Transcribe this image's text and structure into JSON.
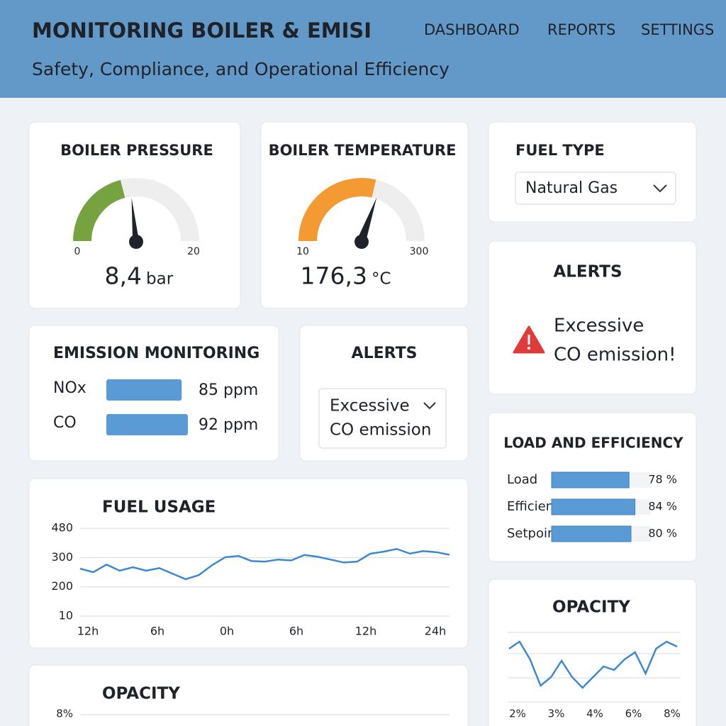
{
  "header": {
    "title": "MONITORING BOILER & EMISI",
    "subtitle": "Safety, Compliance, and Operational Efficiency",
    "nav": [
      "DASHBOARD",
      "REPORTS",
      "SETTINGS"
    ]
  },
  "pressure": {
    "title": "BOILER PRESSURE",
    "min": 0,
    "max": 20,
    "value": 8.4,
    "value_label": "8,4",
    "unit": "bar",
    "color": "#76a240"
  },
  "temperature": {
    "title": "BOILER TEMPERATURE",
    "min": 10,
    "max": 300,
    "value": 176.3,
    "value_label": "176,3",
    "unit": "°C",
    "color": "#f39a33"
  },
  "fuel_type": {
    "title": "FUEL TYPE",
    "selected": "Natural Gas"
  },
  "alert_panel": {
    "title": "ALERTS",
    "lines": [
      "Excessive",
      "CO emission!"
    ]
  },
  "emission": {
    "title": "EMISSION MONITORING",
    "rows": [
      {
        "name": "NOx",
        "value": 85,
        "value_label": "85 ppm"
      },
      {
        "name": "CO",
        "value": 92,
        "value_label": "92 ppm"
      }
    ]
  },
  "alert_select": {
    "title": "ALERTS",
    "lines": [
      "Excessive",
      "CO emission"
    ]
  },
  "load": {
    "title": "LOAD AND EFFICIENCY",
    "rows": [
      {
        "name": "Load",
        "value": 78,
        "value_label": "78 %"
      },
      {
        "name": "Efficiency",
        "value": 84,
        "value_label": "84 %"
      },
      {
        "name": "Setpoint",
        "value": 80,
        "value_label": "80 %"
      }
    ]
  },
  "fuel_usage": {
    "title": "FUEL USAGE",
    "yticks": [
      10,
      200,
      300,
      480
    ],
    "xlabels": [
      "12h",
      "6h",
      "0h",
      "6h",
      "12h",
      "24h"
    ],
    "values": [
      262,
      250,
      276,
      255,
      267,
      255,
      264,
      245,
      226,
      240,
      274,
      302,
      310,
      288,
      286,
      293,
      290,
      316,
      305,
      293,
      283,
      286,
      324,
      336,
      353,
      324,
      340,
      333,
      317
    ]
  },
  "opacity_side": {
    "title": "OPACITY",
    "xlabels": [
      "2%",
      "3%",
      "4%",
      "6%",
      "8%"
    ],
    "values": [
      75,
      85,
      60,
      23,
      35,
      58,
      35,
      20,
      35,
      50,
      45,
      60,
      70,
      40,
      75,
      85,
      78
    ]
  },
  "opacity_bottom": {
    "title": "OPACITY",
    "ytick_label": "8%"
  }
}
